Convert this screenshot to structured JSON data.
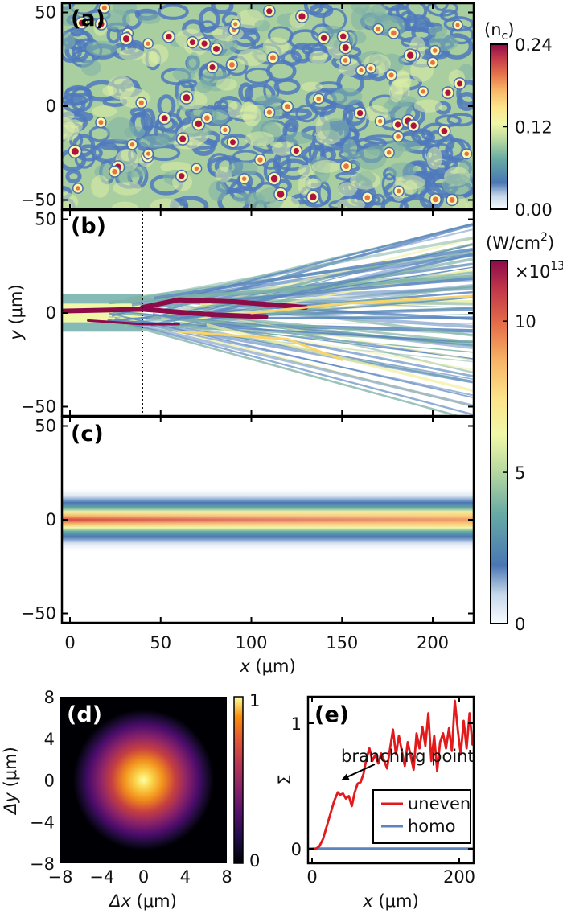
{
  "chart_data": [
    {
      "id": "a",
      "type": "heatmap",
      "panel_label": "(a)",
      "description_values": "random electron density map with localized peaks",
      "x_range": [
        -5,
        222
      ],
      "ylim": [
        -55,
        55
      ],
      "yticks": [
        "50",
        "0",
        "−50"
      ],
      "ytick_values": [
        50,
        0,
        -50
      ],
      "colorbar": {
        "unit": "(n",
        "unit_sub": "c",
        "unit_close": ")",
        "range": [
          0.0,
          0.24
        ],
        "ticks": [
          "0.24",
          "0.12",
          "0.00"
        ],
        "tick_values": [
          0.24,
          0.12,
          0.0
        ],
        "colormap": "Spectral_r"
      }
    },
    {
      "id": "b",
      "type": "heatmap",
      "panel_label": "(b)",
      "ylabel_var": "y",
      "ylabel_unit": " (μm)",
      "ylim": [
        -55,
        55
      ],
      "yticks": [
        "50",
        "0",
        "−50"
      ],
      "ytick_values": [
        50,
        0,
        -50
      ],
      "marker_line_x": 40,
      "colorbar": {
        "unit": "(W/cm",
        "unit_sup": "2",
        "unit_close": ")",
        "multiplier": "×10",
        "multiplier_exp": "13",
        "range": [
          0,
          12
        ],
        "ticks": [
          "10",
          "5",
          "0"
        ],
        "tick_values": [
          10,
          5,
          0
        ],
        "colormap": "Spectral_r"
      }
    },
    {
      "id": "c",
      "type": "heatmap",
      "panel_label": "(c)",
      "ylim": [
        -55,
        55
      ],
      "yticks": [
        "50",
        "0",
        "−50"
      ],
      "ytick_values": [
        50,
        0,
        -50
      ],
      "xlim": [
        -5,
        222
      ],
      "xticks": [
        "0",
        "50",
        "100",
        "150",
        "200"
      ],
      "xtick_values": [
        0,
        50,
        100,
        150,
        200
      ],
      "xlabel_var": "x",
      "xlabel_unit": " (μm)",
      "beam_half_width": 8
    },
    {
      "id": "d",
      "type": "heatmap",
      "panel_label": "(d)",
      "xlim": [
        -8,
        8
      ],
      "ylim": [
        -8,
        8
      ],
      "xticks": [
        "−8",
        "−4",
        "0",
        "4",
        "8"
      ],
      "xtick_values": [
        -8,
        -4,
        0,
        4,
        8
      ],
      "yticks": [
        "8",
        "4",
        "0",
        "−4",
        "−8"
      ],
      "ytick_values": [
        8,
        4,
        0,
        -4,
        -8
      ],
      "xlabel_var": "Δx",
      "xlabel_unit": " (μm)",
      "ylabel_var": "Δy",
      "ylabel_unit": " (μm)",
      "gaussian_sigma": 2.6,
      "colorbar": {
        "range": [
          0,
          1
        ],
        "ticks": [
          "1",
          "0"
        ],
        "tick_values": [
          1,
          0
        ],
        "colormap": "inferno"
      }
    },
    {
      "id": "e",
      "type": "line",
      "panel_label": "(e)",
      "xlim": [
        -5,
        222
      ],
      "ylim": [
        -0.1,
        1.2
      ],
      "xticks": [
        "0",
        "200"
      ],
      "xtick_values": [
        0,
        200
      ],
      "yticks": [
        "1",
        "0"
      ],
      "ytick_values": [
        1,
        0
      ],
      "xlabel_var": "x",
      "xlabel_unit": " (μm)",
      "ylabel": "Σ",
      "annotation": "branching point",
      "annotation_arrow_to": [
        40,
        0.55
      ],
      "legend_position": "lower-right",
      "series": [
        {
          "name": "uneven",
          "color": "#e31a1c",
          "x": [
            0,
            5,
            10,
            15,
            20,
            25,
            30,
            35,
            38,
            42,
            46,
            50,
            54,
            58,
            62,
            66,
            70,
            74,
            78,
            82,
            86,
            90,
            94,
            98,
            102,
            106,
            110,
            114,
            118,
            122,
            126,
            130,
            134,
            138,
            142,
            146,
            150,
            154,
            158,
            162,
            166,
            170,
            174,
            178,
            182,
            186,
            190,
            194,
            198,
            202,
            206,
            210,
            214,
            218,
            222
          ],
          "y": [
            0,
            0,
            0.02,
            0.08,
            0.18,
            0.28,
            0.38,
            0.45,
            0.43,
            0.44,
            0.4,
            0.42,
            0.34,
            0.45,
            0.52,
            0.53,
            0.6,
            0.72,
            0.8,
            0.7,
            0.75,
            0.68,
            0.76,
            0.7,
            0.64,
            0.8,
            0.95,
            0.75,
            0.9,
            0.78,
            0.66,
            0.85,
            0.74,
            0.63,
            0.92,
            0.8,
            0.97,
            0.82,
            1.08,
            0.7,
            0.9,
            0.62,
            0.85,
            0.92,
            0.8,
            0.96,
            0.78,
            1.18,
            0.95,
            0.75,
            1.02,
            0.8,
            1.08,
            0.83,
            1.0
          ]
        },
        {
          "name": "homo",
          "color": "#5b84c0",
          "x": [
            -5,
            222
          ],
          "y": [
            0,
            0
          ]
        }
      ]
    }
  ]
}
